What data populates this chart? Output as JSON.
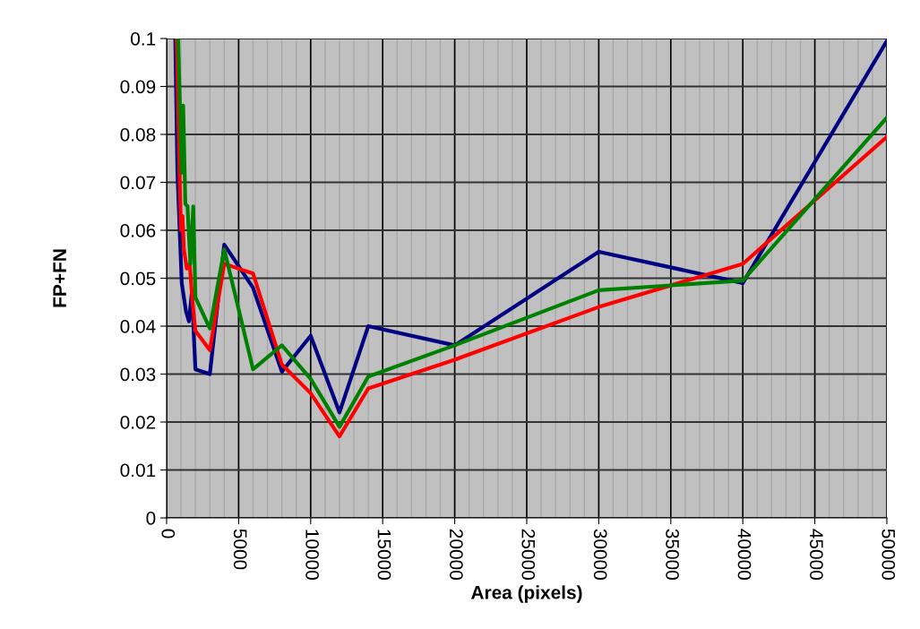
{
  "chart_data": {
    "type": "line",
    "xlabel": "Area (pixels)",
    "ylabel": "FP+FN",
    "xlim": [
      0,
      50000
    ],
    "xticks": [
      0,
      5000,
      10000,
      15000,
      20000,
      25000,
      30000,
      35000,
      40000,
      45000,
      50000
    ],
    "ylim": [
      0,
      0.1
    ],
    "yticks": [
      0,
      0.01,
      0.02,
      0.03,
      0.04,
      0.05,
      0.06,
      0.07,
      0.08,
      0.09,
      0.1
    ],
    "grid": true,
    "line_style": "solid",
    "marker": "none",
    "series": [
      {
        "color": "#000080",
        "x": [
          600,
          750,
          1050,
          1350,
          1550,
          1750,
          2000,
          3000,
          4000,
          6000,
          8000,
          10000,
          12000,
          14000,
          20000,
          30000,
          40000,
          50000
        ],
        "values": [
          0.1,
          0.072,
          0.049,
          0.043,
          0.041,
          0.047,
          0.031,
          0.03,
          0.057,
          0.048,
          0.0305,
          0.038,
          0.022,
          0.04,
          0.036,
          0.0555,
          0.049,
          0.0995
        ]
      },
      {
        "color": "#ff0000",
        "x": [
          700,
          900,
          1000,
          1100,
          1200,
          1400,
          1600,
          1800,
          2000,
          3000,
          4000,
          6000,
          8000,
          10000,
          12000,
          14000,
          20000,
          30000,
          40000,
          50000
        ],
        "values": [
          0.1,
          0.072,
          0.06,
          0.063,
          0.056,
          0.052,
          0.053,
          0.045,
          0.039,
          0.035,
          0.053,
          0.051,
          0.032,
          0.026,
          0.017,
          0.027,
          0.033,
          0.044,
          0.053,
          0.0795
        ]
      },
      {
        "color": "#008000",
        "x": [
          800,
          1050,
          1150,
          1300,
          1450,
          1650,
          1850,
          2000,
          3000,
          4000,
          6000,
          8000,
          10000,
          12000,
          14000,
          20000,
          30000,
          40000,
          50000
        ],
        "values": [
          0.1,
          0.072,
          0.086,
          0.0655,
          0.065,
          0.053,
          0.065,
          0.046,
          0.0395,
          0.056,
          0.031,
          0.036,
          0.029,
          0.019,
          0.0295,
          0.036,
          0.0475,
          0.0495,
          0.0835
        ]
      }
    ]
  }
}
